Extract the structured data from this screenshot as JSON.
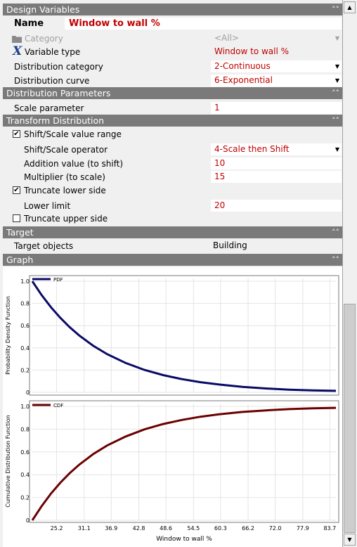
{
  "sections": {
    "design_variables": "Design Variables",
    "distribution_parameters": "Distribution Parameters",
    "transform_distribution": "Transform Distribution",
    "target": "Target",
    "graph": "Graph"
  },
  "name": {
    "label": "Name",
    "value": "Window to wall %"
  },
  "category": {
    "label": "Category",
    "value": "<All>"
  },
  "variable_type": {
    "label": "Variable type",
    "value": "Window to wall %"
  },
  "distribution_category": {
    "label": "Distribution category",
    "value": "2-Continuous"
  },
  "distribution_curve": {
    "label": "Distribution curve",
    "value": "6-Exponential"
  },
  "scale_parameter": {
    "label": "Scale parameter",
    "value": "1"
  },
  "shift_scale_range": {
    "label": "Shift/Scale value range",
    "checked": true
  },
  "shift_scale_operator": {
    "label": "Shift/Scale operator",
    "value": "4-Scale then Shift"
  },
  "addition_value": {
    "label": "Addition value (to shift)",
    "value": "10"
  },
  "multiplier": {
    "label": "Multiplier (to scale)",
    "value": "15"
  },
  "truncate_lower": {
    "label": "Truncate lower side",
    "checked": true
  },
  "lower_limit": {
    "label": "Lower limit",
    "value": "20"
  },
  "truncate_upper": {
    "label": "Truncate upper side",
    "checked": false
  },
  "target_objects": {
    "label": "Target objects",
    "value": "Building"
  },
  "icons": {
    "category": "folder-icon",
    "variable_type": "x-variable-icon",
    "chevron": "double-chevron-down-icon"
  },
  "colors": {
    "value_text": "#c00000",
    "header_bg": "#7a7a7a",
    "pdf_line": "#0a0a66",
    "cdf_line": "#6b0000"
  },
  "chart_data": [
    {
      "type": "line",
      "legend": "PDF",
      "ylabel": "Probability Density Function",
      "ylim": [
        0,
        1.0
      ],
      "yticks": [
        "0",
        "0.2",
        "0.4",
        "0.6",
        "0.8",
        "1.0"
      ],
      "xlim": [
        20,
        85
      ],
      "series": [
        {
          "name": "PDF",
          "x": [
            20,
            22,
            24,
            26,
            28,
            30,
            33,
            36,
            40,
            44,
            48,
            52,
            56,
            60,
            65,
            70,
            75,
            80,
            85
          ],
          "values": [
            1.0,
            0.875,
            0.765,
            0.67,
            0.586,
            0.513,
            0.42,
            0.344,
            0.264,
            0.202,
            0.155,
            0.119,
            0.091,
            0.07,
            0.049,
            0.035,
            0.024,
            0.017,
            0.013
          ]
        }
      ]
    },
    {
      "type": "line",
      "legend": "CDF",
      "ylabel": "Cumulative Distribution Function",
      "xlabel": "Window to wall %",
      "ylim": [
        0,
        1.0
      ],
      "yticks": [
        "0",
        "0.2",
        "0.4",
        "0.6",
        "0.8",
        "1.0"
      ],
      "xlim": [
        20,
        85
      ],
      "xticks": [
        "25.2",
        "31.1",
        "36.9",
        "42.8",
        "48.6",
        "54.5",
        "60.3",
        "66.2",
        "72.0",
        "77.9",
        "83.7"
      ],
      "series": [
        {
          "name": "CDF",
          "x": [
            20,
            22,
            24,
            26,
            28,
            30,
            33,
            36,
            40,
            44,
            48,
            52,
            56,
            60,
            65,
            70,
            75,
            80,
            85
          ],
          "values": [
            0,
            0.125,
            0.235,
            0.33,
            0.414,
            0.487,
            0.58,
            0.656,
            0.736,
            0.798,
            0.845,
            0.881,
            0.909,
            0.93,
            0.951,
            0.965,
            0.976,
            0.983,
            0.987
          ]
        }
      ]
    }
  ]
}
